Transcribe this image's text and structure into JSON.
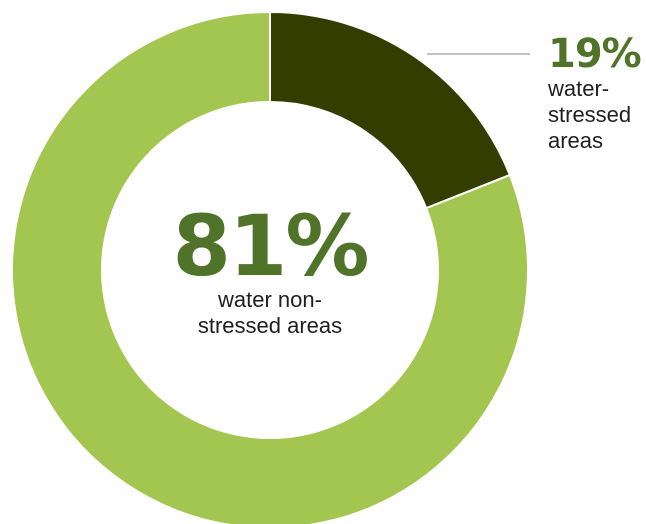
{
  "chart_data": {
    "type": "pie",
    "donut": true,
    "slices": [
      {
        "label": "water-stressed areas",
        "value": 19,
        "color": "#333d00",
        "display": "19%"
      },
      {
        "label": "water non-stressed areas",
        "value": 81,
        "color": "#a2c64f",
        "display": "81%"
      }
    ],
    "label_color": "#4f7328",
    "leader_color": "#9e9e9e"
  },
  "labels": {
    "main_pct": "81%",
    "main_desc": "water non-stressed areas",
    "callout_pct": "19%",
    "callout_desc": "water-stressed areas"
  }
}
